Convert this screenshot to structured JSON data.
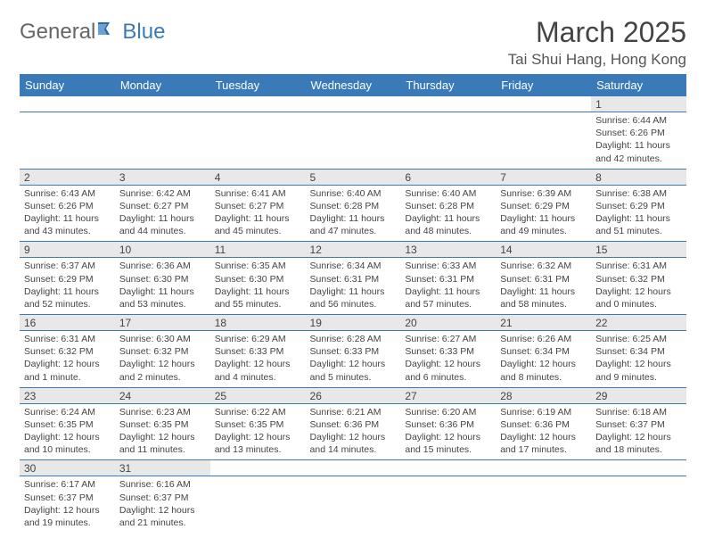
{
  "logo": {
    "text1": "General",
    "text2": "Blue",
    "icon_color": "#2f6aa3"
  },
  "title": "March 2025",
  "location": "Tai Shui Hang, Hong Kong",
  "colors": {
    "header_bg": "#3a7ab8",
    "daynum_bg": "#e8e8e8",
    "rule": "#3a7ab8"
  },
  "weekdays": [
    "Sunday",
    "Monday",
    "Tuesday",
    "Wednesday",
    "Thursday",
    "Friday",
    "Saturday"
  ],
  "weeks": [
    [
      null,
      null,
      null,
      null,
      null,
      null,
      {
        "n": "1",
        "sr": "6:44 AM",
        "ss": "6:26 PM",
        "dl": "11 hours and 42 minutes."
      }
    ],
    [
      {
        "n": "2",
        "sr": "6:43 AM",
        "ss": "6:26 PM",
        "dl": "11 hours and 43 minutes."
      },
      {
        "n": "3",
        "sr": "6:42 AM",
        "ss": "6:27 PM",
        "dl": "11 hours and 44 minutes."
      },
      {
        "n": "4",
        "sr": "6:41 AM",
        "ss": "6:27 PM",
        "dl": "11 hours and 45 minutes."
      },
      {
        "n": "5",
        "sr": "6:40 AM",
        "ss": "6:28 PM",
        "dl": "11 hours and 47 minutes."
      },
      {
        "n": "6",
        "sr": "6:40 AM",
        "ss": "6:28 PM",
        "dl": "11 hours and 48 minutes."
      },
      {
        "n": "7",
        "sr": "6:39 AM",
        "ss": "6:29 PM",
        "dl": "11 hours and 49 minutes."
      },
      {
        "n": "8",
        "sr": "6:38 AM",
        "ss": "6:29 PM",
        "dl": "11 hours and 51 minutes."
      }
    ],
    [
      {
        "n": "9",
        "sr": "6:37 AM",
        "ss": "6:29 PM",
        "dl": "11 hours and 52 minutes."
      },
      {
        "n": "10",
        "sr": "6:36 AM",
        "ss": "6:30 PM",
        "dl": "11 hours and 53 minutes."
      },
      {
        "n": "11",
        "sr": "6:35 AM",
        "ss": "6:30 PM",
        "dl": "11 hours and 55 minutes."
      },
      {
        "n": "12",
        "sr": "6:34 AM",
        "ss": "6:31 PM",
        "dl": "11 hours and 56 minutes."
      },
      {
        "n": "13",
        "sr": "6:33 AM",
        "ss": "6:31 PM",
        "dl": "11 hours and 57 minutes."
      },
      {
        "n": "14",
        "sr": "6:32 AM",
        "ss": "6:31 PM",
        "dl": "11 hours and 58 minutes."
      },
      {
        "n": "15",
        "sr": "6:31 AM",
        "ss": "6:32 PM",
        "dl": "12 hours and 0 minutes."
      }
    ],
    [
      {
        "n": "16",
        "sr": "6:31 AM",
        "ss": "6:32 PM",
        "dl": "12 hours and 1 minute."
      },
      {
        "n": "17",
        "sr": "6:30 AM",
        "ss": "6:32 PM",
        "dl": "12 hours and 2 minutes."
      },
      {
        "n": "18",
        "sr": "6:29 AM",
        "ss": "6:33 PM",
        "dl": "12 hours and 4 minutes."
      },
      {
        "n": "19",
        "sr": "6:28 AM",
        "ss": "6:33 PM",
        "dl": "12 hours and 5 minutes."
      },
      {
        "n": "20",
        "sr": "6:27 AM",
        "ss": "6:33 PM",
        "dl": "12 hours and 6 minutes."
      },
      {
        "n": "21",
        "sr": "6:26 AM",
        "ss": "6:34 PM",
        "dl": "12 hours and 8 minutes."
      },
      {
        "n": "22",
        "sr": "6:25 AM",
        "ss": "6:34 PM",
        "dl": "12 hours and 9 minutes."
      }
    ],
    [
      {
        "n": "23",
        "sr": "6:24 AM",
        "ss": "6:35 PM",
        "dl": "12 hours and 10 minutes."
      },
      {
        "n": "24",
        "sr": "6:23 AM",
        "ss": "6:35 PM",
        "dl": "12 hours and 11 minutes."
      },
      {
        "n": "25",
        "sr": "6:22 AM",
        "ss": "6:35 PM",
        "dl": "12 hours and 13 minutes."
      },
      {
        "n": "26",
        "sr": "6:21 AM",
        "ss": "6:36 PM",
        "dl": "12 hours and 14 minutes."
      },
      {
        "n": "27",
        "sr": "6:20 AM",
        "ss": "6:36 PM",
        "dl": "12 hours and 15 minutes."
      },
      {
        "n": "28",
        "sr": "6:19 AM",
        "ss": "6:36 PM",
        "dl": "12 hours and 17 minutes."
      },
      {
        "n": "29",
        "sr": "6:18 AM",
        "ss": "6:37 PM",
        "dl": "12 hours and 18 minutes."
      }
    ],
    [
      {
        "n": "30",
        "sr": "6:17 AM",
        "ss": "6:37 PM",
        "dl": "12 hours and 19 minutes."
      },
      {
        "n": "31",
        "sr": "6:16 AM",
        "ss": "6:37 PM",
        "dl": "12 hours and 21 minutes."
      },
      null,
      null,
      null,
      null,
      null
    ]
  ],
  "labels": {
    "sunrise": "Sunrise: ",
    "sunset": "Sunset: ",
    "daylight": "Daylight: "
  }
}
